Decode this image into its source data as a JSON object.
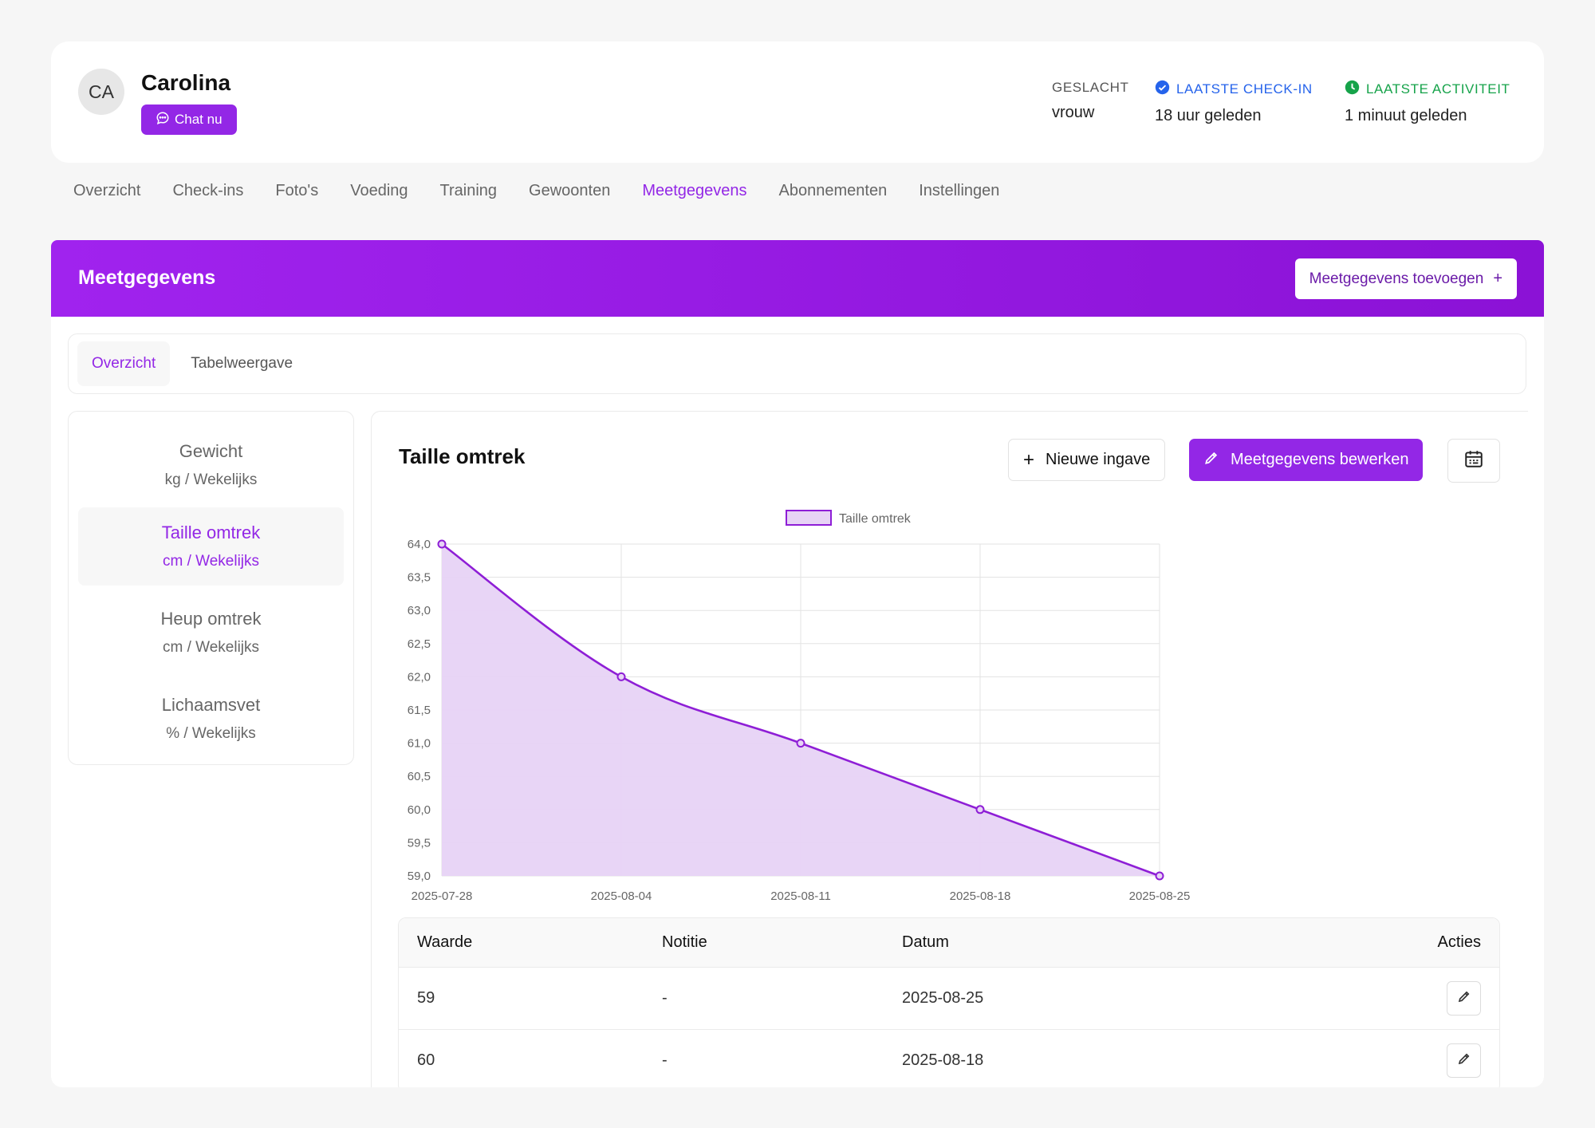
{
  "client": {
    "initials": "CA",
    "name": "Carolina",
    "chat_label": "Chat nu"
  },
  "meta": {
    "gender_label": "GESLACHT",
    "gender_value": "vrouw",
    "checkin_label": "LAATSTE CHECK-IN",
    "checkin_value": "18 uur geleden",
    "activity_label": "LAATSTE ACTIVITEIT",
    "activity_value": "1 minuut geleden"
  },
  "tabs": [
    "Overzicht",
    "Check-ins",
    "Foto's",
    "Voeding",
    "Training",
    "Gewoonten",
    "Meetgegevens",
    "Abonnementen",
    "Instellingen"
  ],
  "active_tab": "Meetgegevens",
  "banner": {
    "title": "Meetgegevens",
    "add_label": "Meetgegevens toevoegen",
    "add_icon": "+"
  },
  "subtabs": [
    "Overzicht",
    "Tabelweergave"
  ],
  "metrics": [
    {
      "name": "Gewicht",
      "unit": "kg / Wekelijks"
    },
    {
      "name": "Taille omtrek",
      "unit": "cm / Wekelijks"
    },
    {
      "name": "Heup omtrek",
      "unit": "cm / Wekelijks"
    },
    {
      "name": "Lichaamsvet",
      "unit": "% / Wekelijks"
    }
  ],
  "detail": {
    "title": "Taille omtrek",
    "new_label": "Nieuwe ingave",
    "edit_label": "Meetgegevens bewerken"
  },
  "colors": {
    "accent": "#9327e6",
    "line": "#8e1ed6",
    "fill": "#e7d3f5"
  },
  "chart_data": {
    "type": "area",
    "x": [
      "2025-07-28",
      "2025-08-04",
      "2025-08-11",
      "2025-08-18",
      "2025-08-25"
    ],
    "series": [
      {
        "name": "Taille omtrek",
        "values": [
          64.0,
          62.0,
          61.0,
          60.0,
          59.0
        ]
      }
    ],
    "ylim": [
      59.0,
      64.0
    ],
    "yticks": [
      "64,0",
      "63,5",
      "63,0",
      "62,5",
      "62,0",
      "61,5",
      "61,0",
      "60,5",
      "60,0",
      "59,5",
      "59,0"
    ],
    "grid": true,
    "legend": "top-center"
  },
  "table": {
    "headers": [
      "Waarde",
      "Notitie",
      "Datum",
      "Acties"
    ],
    "rows": [
      {
        "value": "59",
        "note": "-",
        "date": "2025-08-25"
      },
      {
        "value": "60",
        "note": "-",
        "date": "2025-08-18"
      }
    ]
  }
}
